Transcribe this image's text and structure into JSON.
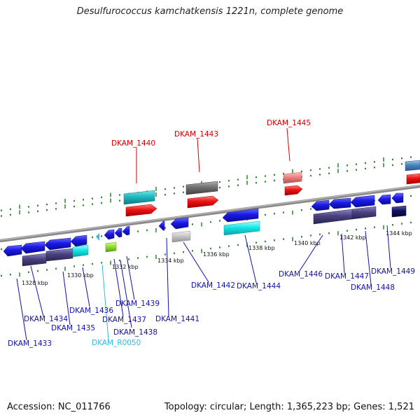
{
  "title": "Desulfurococcus kamchatkensis 1221n, complete genome",
  "accession": "Accession: NC_011766",
  "summary": "Topology: circular; Length: 1,365,223 bp; Genes: 1,521",
  "colors": {
    "backbone": "#8a8a8a",
    "tick": "#1f7a1f",
    "label_highlight": "#d40000",
    "label_default": "#1010b0",
    "label_rna": "#33bbdd",
    "gene_blue": "#1a1ae6",
    "gene_dark": "#4a4280",
    "gene_cyan": "#16e6e6",
    "gene_red": "#ee1111",
    "gene_grey": "#777777"
  },
  "scale_labels": [
    "1328 kbp",
    "1330 kbp",
    "1332 kbp",
    "1334 kbp",
    "1336 kbp",
    "1338 kbp",
    "1340 kbp",
    "1342 kbp",
    "1344 kbp"
  ],
  "gene_labels": [
    {
      "text": "DKAM_1440",
      "kind": "highlight"
    },
    {
      "text": "DKAM_1443",
      "kind": "highlight"
    },
    {
      "text": "DKAM_1445",
      "kind": "highlight"
    },
    {
      "text": "DKAM_1433",
      "kind": "default"
    },
    {
      "text": "DKAM_1434",
      "kind": "default"
    },
    {
      "text": "DKAM_1435",
      "kind": "default"
    },
    {
      "text": "DKAM_1436",
      "kind": "default"
    },
    {
      "text": "DKAM_1437",
      "kind": "default"
    },
    {
      "text": "DKAM_1438",
      "kind": "default"
    },
    {
      "text": "DKAM_1439",
      "kind": "default"
    },
    {
      "text": "DKAM_R0050",
      "kind": "rna"
    },
    {
      "text": "DKAM_1441",
      "kind": "default"
    },
    {
      "text": "DKAM_1442",
      "kind": "default"
    },
    {
      "text": "DKAM_1444",
      "kind": "default"
    },
    {
      "text": "DKAM_1446",
      "kind": "default"
    },
    {
      "text": "DKAM_1447",
      "kind": "default"
    },
    {
      "text": "DKAM_1448",
      "kind": "default"
    },
    {
      "text": "DKAM_1449",
      "kind": "default"
    }
  ]
}
